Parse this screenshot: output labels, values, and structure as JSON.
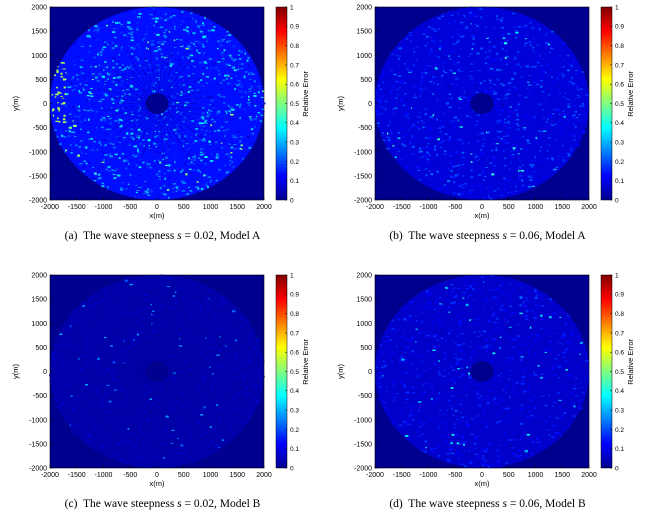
{
  "colormap": {
    "stops": [
      "#00008f",
      "#0000ff",
      "#0080ff",
      "#00ffff",
      "#80ff80",
      "#ffff00",
      "#ff8000",
      "#ff0000",
      "#800000"
    ]
  },
  "chart_data": [
    {
      "type": "heatmap",
      "caption": "(a)  The wave steepness s = 0.02, Model A",
      "caption_parts": {
        "label": "(a)",
        "text": "The wave steepness",
        "var": "s",
        "eq": "= 0.02, Model A"
      },
      "xlabel": "x(m)",
      "ylabel": "y(m)",
      "colorbar_label": "Relative Error",
      "xlim": [
        -2000,
        2000
      ],
      "ylim": [
        -2000,
        2000
      ],
      "clim": [
        0,
        1
      ],
      "xticks": [
        "-2000",
        "-1500",
        "-1000",
        "-500",
        "0",
        "500",
        "1000",
        "1500",
        "2000"
      ],
      "yticks": [
        "2000",
        "1500",
        "1000",
        "500",
        "0",
        "-500",
        "-1000",
        "-1500",
        "-2000"
      ],
      "cticks": [
        "1",
        "0.9",
        "0.8",
        "0.7",
        "0.6",
        "0.5",
        "0.4",
        "0.3",
        "0.2",
        "0.1",
        "0"
      ],
      "domain_radius": 2000,
      "inner_radius": 220,
      "typical_error": 0.25,
      "max_error": 0.55
    },
    {
      "type": "heatmap",
      "caption": "(b)  The wave steepness s = 0.06, Model A",
      "caption_parts": {
        "label": "(b)",
        "text": "The wave steepness",
        "var": "s",
        "eq": "= 0.06, Model A"
      },
      "xlabel": "x(m)",
      "ylabel": "y(m)",
      "colorbar_label": "Relative Error",
      "xlim": [
        -2000,
        2000
      ],
      "ylim": [
        -2000,
        2000
      ],
      "clim": [
        0,
        1
      ],
      "xticks": [
        "-2000",
        "-1500",
        "-1000",
        "-500",
        "0",
        "500",
        "1000",
        "1500",
        "2000"
      ],
      "yticks": [
        "2000",
        "1500",
        "1000",
        "500",
        "0",
        "-500",
        "-1000",
        "-1500",
        "-2000"
      ],
      "cticks": [
        "1",
        "0.9",
        "0.8",
        "0.7",
        "0.6",
        "0.5",
        "0.4",
        "0.3",
        "0.2",
        "0.1",
        "0"
      ],
      "domain_radius": 2000,
      "inner_radius": 220,
      "typical_error": 0.15,
      "max_error": 0.45
    },
    {
      "type": "heatmap",
      "caption": "(c)  The wave steepness s = 0.02, Model B",
      "caption_parts": {
        "label": "(c)",
        "text": "The wave steepness",
        "var": "s",
        "eq": "= 0.02, Model B"
      },
      "xlabel": "x(m)",
      "ylabel": "y(m)",
      "colorbar_label": "Relative Error",
      "xlim": [
        -2000,
        2000
      ],
      "ylim": [
        -2000,
        2000
      ],
      "clim": [
        0,
        1
      ],
      "xticks": [
        "-2000",
        "-1500",
        "-1000",
        "-500",
        "0",
        "500",
        "1000",
        "1500",
        "2000"
      ],
      "yticks": [
        "2000",
        "1500",
        "1000",
        "500",
        "0",
        "-500",
        "-1000",
        "-1500",
        "-2000"
      ],
      "cticks": [
        "1",
        "0.9",
        "0.8",
        "0.7",
        "0.6",
        "0.5",
        "0.4",
        "0.3",
        "0.2",
        "0.1",
        "0"
      ],
      "domain_radius": 2000,
      "inner_radius": 220,
      "typical_error": 0.05,
      "max_error": 0.3
    },
    {
      "type": "heatmap",
      "caption": "(d)  The wave steepness s = 0.06, Model B",
      "caption_parts": {
        "label": "(d)",
        "text": "The wave steepness",
        "var": "s",
        "eq": "= 0.06, Model B"
      },
      "xlabel": "x(m)",
      "ylabel": "y(m)",
      "colorbar_label": "Relative Error",
      "xlim": [
        -2000,
        2000
      ],
      "ylim": [
        -2000,
        2000
      ],
      "clim": [
        0,
        1
      ],
      "xticks": [
        "-2000",
        "-1500",
        "-1000",
        "-500",
        "0",
        "500",
        "1000",
        "1500",
        "2000"
      ],
      "yticks": [
        "2000",
        "1500",
        "1000",
        "500",
        "0",
        "-500",
        "-1000",
        "-1500",
        "-2000"
      ],
      "cticks": [
        "1",
        "0.9",
        "0.8",
        "0.7",
        "0.6",
        "0.5",
        "0.4",
        "0.3",
        "0.2",
        "0.1",
        "0"
      ],
      "domain_radius": 2000,
      "inner_radius": 220,
      "typical_error": 0.12,
      "max_error": 0.4
    }
  ]
}
